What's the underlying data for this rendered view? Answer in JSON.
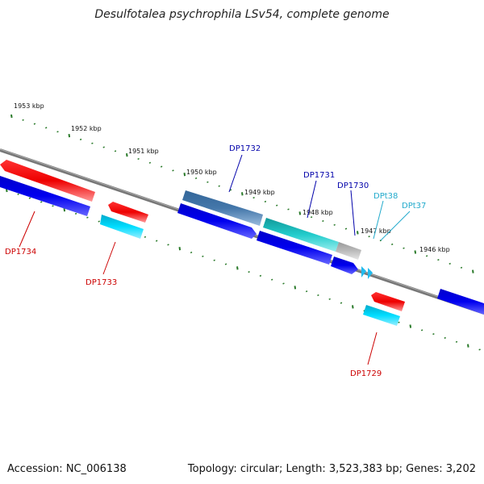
{
  "title": "Desulfotalea psychrophila LSv54, complete genome",
  "footer": {
    "accession": "Accession: NC_006138",
    "stats": "Topology: circular; Length: 3,523,383 bp; Genes: 3,202"
  },
  "kbp_labels": [
    "1953 kbp",
    "1952 kbp",
    "1951 kbp",
    "1950 kbp",
    "1949 kbp",
    "1948 kbp",
    "1947 kbp",
    "1946 kbp"
  ],
  "gene_labels": [
    "DP1734",
    "DP1733",
    "DP1732",
    "DP1731",
    "DP1730",
    "DPt38",
    "DPt37",
    "DP1729"
  ],
  "colors": {
    "red": "#ee0000",
    "blue": "#0000ee",
    "cyan": "#00ccee",
    "steel": "#4477aa",
    "teal": "#22bbbb",
    "gray": "#aaaaaa",
    "tick_green": "#2a7a2a",
    "label_red": "#cc0000",
    "label_blue": "#0000aa",
    "label_cyan": "#22aacc"
  }
}
